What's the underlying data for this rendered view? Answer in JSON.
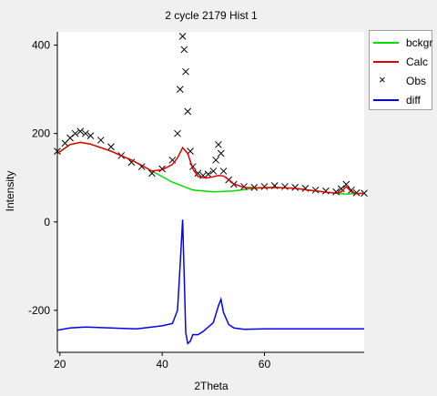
{
  "chart_data": {
    "type": "line",
    "title": "2 cycle 2179 Hist 1",
    "xlabel": "2Theta",
    "ylabel": "Intensity",
    "xlim": [
      19.5,
      79.5
    ],
    "ylim": [
      -295,
      430
    ],
    "x_ticks": [
      20,
      40,
      60
    ],
    "y_ticks": [
      400,
      200,
      0,
      -200
    ],
    "grid": false,
    "legend_position": "top-right, outside plot",
    "series": [
      {
        "name": "bckgr",
        "type": "line",
        "color": "#00dd00",
        "x": [
          19.5,
          22,
          24,
          26,
          30,
          34,
          38,
          42,
          46,
          50,
          54,
          58,
          62,
          66,
          70,
          74,
          76,
          79.5
        ],
        "y": [
          155,
          175,
          180,
          176,
          160,
          140,
          115,
          90,
          72,
          68,
          70,
          76,
          78,
          76,
          70,
          65,
          63,
          65
        ]
      },
      {
        "name": "Calc",
        "type": "line",
        "color": "#dd0000",
        "x": [
          19.5,
          22,
          24,
          26,
          30,
          34,
          36,
          38,
          40,
          42,
          43,
          44,
          45,
          46,
          47,
          48,
          49,
          50,
          51,
          52,
          53,
          54,
          56,
          58,
          62,
          66,
          70,
          74,
          75,
          76,
          77,
          78,
          79.5
        ],
        "y": [
          155,
          175,
          180,
          176,
          160,
          140,
          128,
          115,
          118,
          130,
          145,
          168,
          155,
          120,
          103,
          100,
          100,
          102,
          105,
          104,
          96,
          86,
          78,
          77,
          78,
          76,
          70,
          65,
          68,
          80,
          68,
          64,
          65
        ]
      },
      {
        "name": "Obs",
        "type": "scatter",
        "marker": "x",
        "color": "#000000",
        "x": [
          19.5,
          21,
          22,
          23,
          24,
          25,
          26,
          28,
          30,
          32,
          34,
          36,
          38,
          40,
          42,
          43,
          43.5,
          44,
          44.3,
          44.6,
          45,
          45.5,
          46,
          47,
          48,
          49,
          50,
          50.5,
          51,
          51.5,
          52,
          53,
          54,
          56,
          58,
          60,
          62,
          64,
          66,
          68,
          70,
          72,
          74,
          75,
          76,
          77,
          78,
          79.5
        ],
        "y": [
          160,
          178,
          190,
          200,
          205,
          200,
          195,
          185,
          170,
          150,
          135,
          125,
          110,
          120,
          140,
          200,
          300,
          420,
          390,
          340,
          250,
          160,
          125,
          110,
          105,
          108,
          115,
          140,
          175,
          155,
          115,
          95,
          85,
          80,
          78,
          80,
          82,
          80,
          78,
          76,
          72,
          70,
          68,
          75,
          85,
          72,
          66,
          65
        ]
      },
      {
        "name": "diff",
        "type": "line",
        "color": "#0000ff",
        "x": [
          19.5,
          22,
          25,
          30,
          35,
          40,
          42,
          43,
          43.5,
          44,
          44.3,
          44.6,
          45,
          45.5,
          46,
          47,
          48,
          50,
          51,
          51.5,
          52,
          53,
          54,
          56,
          60,
          65,
          70,
          75,
          79.5
        ],
        "y": [
          -245,
          -240,
          -238,
          -240,
          -242,
          -235,
          -230,
          -200,
          -100,
          5,
          -120,
          -250,
          -275,
          -270,
          -255,
          -255,
          -248,
          -228,
          -190,
          -175,
          -205,
          -232,
          -240,
          -243,
          -242,
          -242,
          -242,
          -242,
          -242
        ]
      }
    ]
  }
}
